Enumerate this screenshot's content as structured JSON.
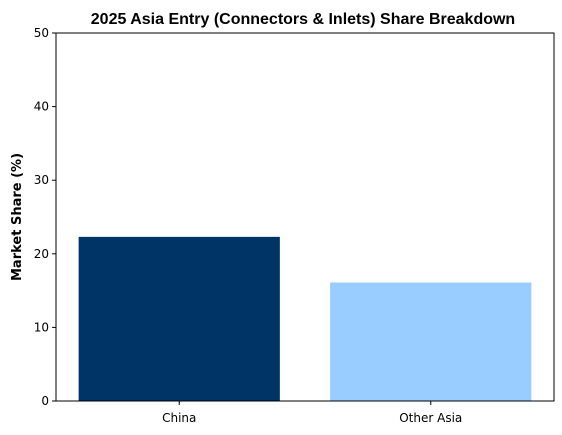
{
  "chart_data": {
    "type": "bar",
    "title": "2025 Asia Entry (Connectors & Inlets) Share Breakdown",
    "xlabel": "",
    "ylabel": "Market Share (%)",
    "categories": [
      "China",
      "Other Asia"
    ],
    "values": [
      22.3,
      16.1
    ],
    "colors": [
      "#003366",
      "#99ccff"
    ],
    "ylim": [
      0,
      50
    ],
    "yticks": [
      0,
      10,
      20,
      30,
      40,
      50
    ],
    "grid": false,
    "legend": "none"
  }
}
